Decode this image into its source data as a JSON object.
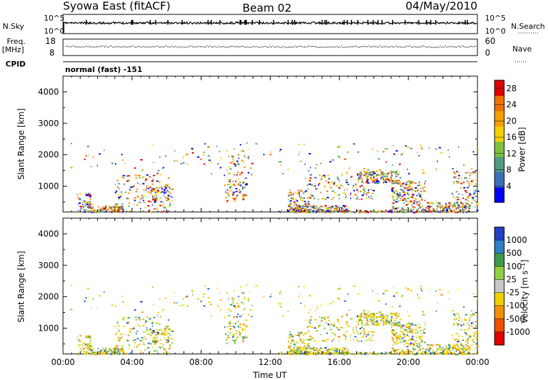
{
  "header": {
    "site": "Syowa East (fitACF)",
    "beam": "Beam 02",
    "date": "04/May/2010"
  },
  "top_panels": {
    "nsky_label": "N.Sky",
    "nsky_ticks": [
      "10^5",
      "10^0"
    ],
    "nsearch_label": "N.Search",
    "nsearch_ticks": [
      "10^5",
      "10^0"
    ],
    "freq_label_1": "Freq.",
    "freq_label_2": "[MHz]",
    "freq_ticks": [
      "18",
      "8"
    ],
    "nave_label": "Nave",
    "nave_ticks": [
      "60",
      "0"
    ],
    "cpid_label": "CPID",
    "cpid_value": "normal (fast) -151"
  },
  "chart_data": [
    {
      "type": "heatmap",
      "title": "",
      "xlabel": "",
      "ylabel": "Slant Range [km]",
      "xlim": [
        "00:00",
        "24:00"
      ],
      "ylim": [
        180,
        4500
      ],
      "y_ticks": [
        "1000",
        "2000",
        "3000",
        "4000"
      ],
      "colorbar": {
        "label": "Power [dB]",
        "ticks": [
          "4",
          "8",
          "12",
          "16",
          "20",
          "24",
          "28"
        ],
        "range": [
          0,
          30
        ],
        "colors": [
          "#0000ff",
          "#3a6fb5",
          "#4f9a86",
          "#7fbf3f",
          "#f5d000",
          "#f5a000",
          "#f07000",
          "#e00000"
        ]
      }
    },
    {
      "type": "heatmap",
      "title": "",
      "xlabel": "Time UT",
      "ylabel": "Slant Range [km]",
      "xlim": [
        "00:00",
        "24:00"
      ],
      "ylim": [
        180,
        4500
      ],
      "x_ticks": [
        "00:00",
        "04:00",
        "08:00",
        "12:00",
        "16:00",
        "20:00",
        "00:00"
      ],
      "y_ticks": [
        "1000",
        "2000",
        "3000",
        "4000"
      ],
      "colorbar": {
        "label": "Velocity [m s⁻¹]",
        "ticks": [
          "1000",
          "500",
          "100",
          "25",
          "-25",
          "-100",
          "-500",
          "-1000"
        ],
        "colors": [
          "#2040c0",
          "#2f7fc8",
          "#3e9a4a",
          "#8fcf40",
          "#c8c8c8",
          "#f0d000",
          "#f09000",
          "#f05000",
          "#e00000"
        ]
      }
    }
  ]
}
